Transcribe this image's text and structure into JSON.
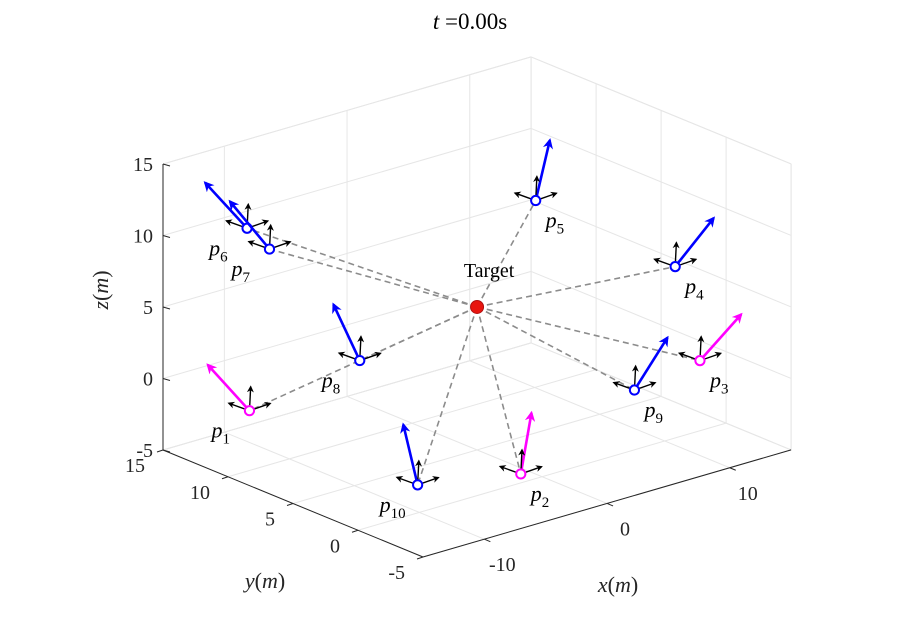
{
  "chart_data": {
    "type": "scatter",
    "title_prefix": "t",
    "title_eq": " =",
    "title_value": "0.00s",
    "xlabel_var": "x",
    "xlabel_unit": "m",
    "ylabel_var": "y",
    "ylabel_unit": "m",
    "zlabel_var": "z",
    "zlabel_unit": "m",
    "xlim": [
      -15,
      15
    ],
    "ylim": [
      -5,
      15
    ],
    "zlim": [
      -5,
      15
    ],
    "x_ticks": [
      {
        "v": -10,
        "label": "-10"
      },
      {
        "v": 0,
        "label": "0"
      },
      {
        "v": 10,
        "label": "10"
      }
    ],
    "y_ticks": [
      {
        "v": -5,
        "label": "-5"
      },
      {
        "v": 0,
        "label": "0"
      },
      {
        "v": 5,
        "label": "5"
      },
      {
        "v": 10,
        "label": "10"
      },
      {
        "v": 15,
        "label": "15"
      }
    ],
    "z_ticks": [
      {
        "v": -5,
        "label": "-5"
      },
      {
        "v": 0,
        "label": "0"
      },
      {
        "v": 5,
        "label": "5"
      },
      {
        "v": 10,
        "label": "10"
      },
      {
        "v": 15,
        "label": "15"
      }
    ],
    "grid": true,
    "target": {
      "label": "Target",
      "x": 0,
      "y": 5,
      "z": 5,
      "color": "#e8150f"
    },
    "agents": [
      {
        "name": "p",
        "sub": "1",
        "x": -8.8,
        "y": 14.2,
        "z": -3.5,
        "color": "#ff00ff"
      },
      {
        "name": "p",
        "sub": "2",
        "x": -6.5,
        "y": -4.5,
        "z": -1.5,
        "color": "#ff00ff"
      },
      {
        "name": "p",
        "sub": "3",
        "x": 15.2,
        "y": 2.2,
        "z": -1.5,
        "color": "#ff00ff"
      },
      {
        "name": "p",
        "sub": "4",
        "x": 15.3,
        "y": 4.2,
        "z": 4.3,
        "color": "#0000ff"
      },
      {
        "name": "p",
        "sub": "5",
        "x": 10.5,
        "y": 10.4,
        "z": 7.8,
        "color": "#0000ff"
      },
      {
        "name": "p",
        "sub": "6",
        "x": -5.5,
        "y": 17.5,
        "z": 7.2,
        "color": "#0000ff"
      },
      {
        "name": "p",
        "sub": "7",
        "x": -9.5,
        "y": 12.0,
        "z": 8.8,
        "color": "#0000ff"
      },
      {
        "name": "p",
        "sub": "8",
        "x": -8.5,
        "y": 6.0,
        "z": 3.0,
        "color": "#0000ff"
      },
      {
        "name": "p",
        "sub": "9",
        "x": 7.0,
        "y": -0.5,
        "z": -0.5,
        "color": "#0000ff"
      },
      {
        "name": "p",
        "sub": "10",
        "x": -11.2,
        "y": -1.0,
        "z": -2.4,
        "color": "#0000ff"
      }
    ]
  }
}
